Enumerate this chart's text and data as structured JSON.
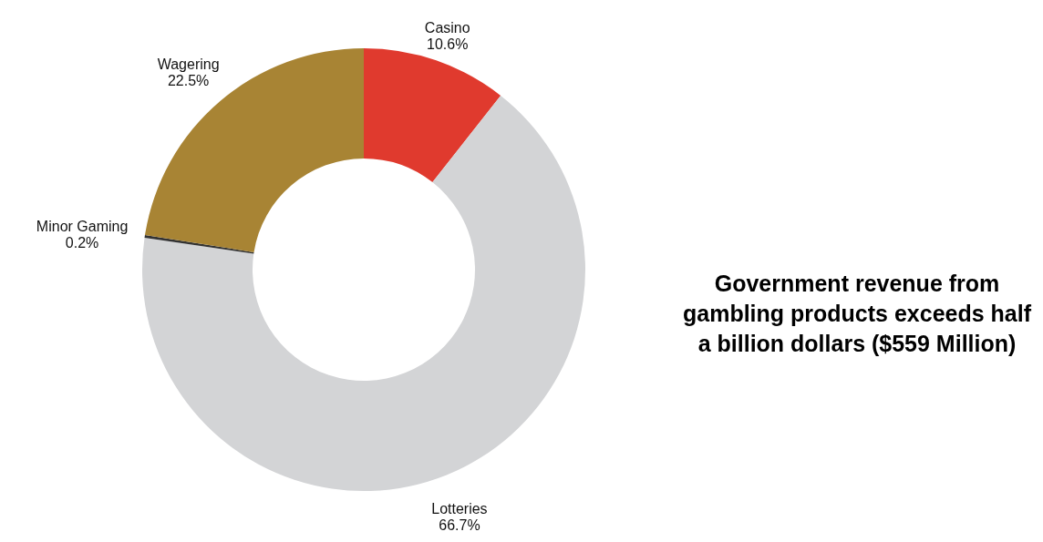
{
  "chart_data": {
    "type": "donut",
    "title": "Government revenue from gambling products exceeds half a billion dollars ($559 Million)",
    "categories": [
      "Casino",
      "Lotteries",
      "Minor Gaming",
      "Wagering"
    ],
    "values": [
      10.6,
      66.7,
      0.2,
      22.5
    ],
    "colors": [
      "#e03a2e",
      "#d3d4d6",
      "#333333",
      "#a88434"
    ],
    "value_labels": [
      "10.6%",
      "66.7%",
      "0.2%",
      "22.5%"
    ]
  }
}
